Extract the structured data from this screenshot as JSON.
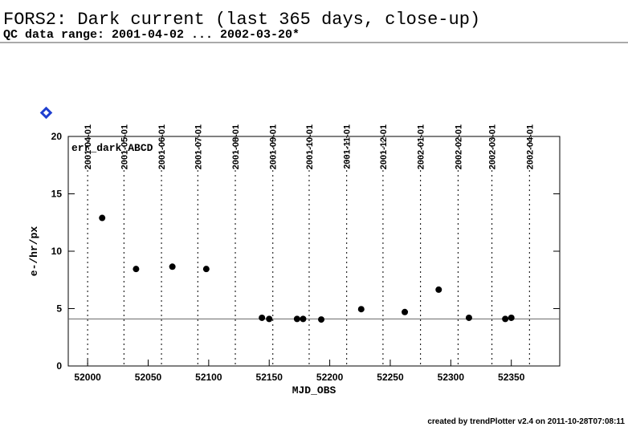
{
  "chart_data": {
    "type": "scatter",
    "title": "FORS2: Dark current (last 365 days, close-up)",
    "subtitle": "QC data range: 2001-04-02 ... 2002-03-20*",
    "annotation": "err_dark_ABCD",
    "x_label": "MJD_OBS",
    "y_label": "e-/hr/px",
    "footer": "created by trendPlotter v2.4 on 2011-10-28T07:08:11",
    "color": "#000000",
    "reference_line": 4.1,
    "xlim": [
      51984,
      52390
    ],
    "ylim": [
      0,
      20
    ],
    "xticks": [
      52000,
      52050,
      52100,
      52150,
      52200,
      52250,
      52300,
      52350
    ],
    "yticks": [
      0,
      5,
      10,
      15,
      20
    ],
    "x2ticks": [
      {
        "value": 52000,
        "label": "2001-04-01"
      },
      {
        "value": 52030,
        "label": "2001-05-01"
      },
      {
        "value": 52061,
        "label": "2001-06-01"
      },
      {
        "value": 52091,
        "label": "2001-07-01"
      },
      {
        "value": 52122,
        "label": "2001-08-01"
      },
      {
        "value": 52153,
        "label": "2001-09-01"
      },
      {
        "value": 52183,
        "label": "2001-10-01"
      },
      {
        "value": 52214,
        "label": "2001-11-01"
      },
      {
        "value": 52244,
        "label": "2001-12-01"
      },
      {
        "value": 52275,
        "label": "2002-01-01"
      },
      {
        "value": 52306,
        "label": "2002-02-01"
      },
      {
        "value": 52334,
        "label": "2002-03-01"
      },
      {
        "value": 52365,
        "label": "2002-04-01"
      }
    ],
    "x": [
      52012,
      52040,
      52070,
      52098,
      52144,
      52150,
      52173,
      52178,
      52193,
      52226,
      52262,
      52290,
      52315,
      52345,
      52350
    ],
    "values": [
      12.9,
      8.45,
      8.65,
      8.45,
      4.2,
      4.1,
      4.1,
      4.1,
      4.05,
      4.95,
      4.7,
      6.65,
      4.2,
      4.1,
      4.2
    ]
  }
}
